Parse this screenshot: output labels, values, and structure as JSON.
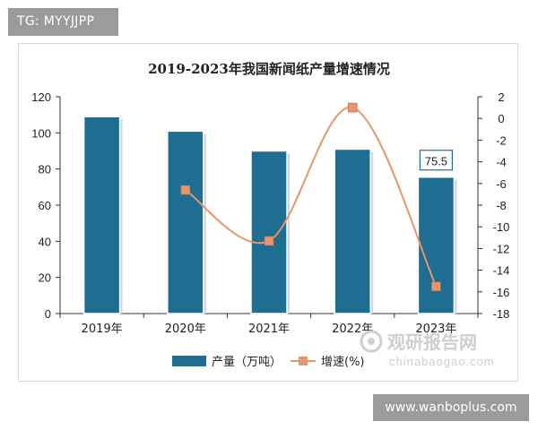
{
  "tags": {
    "top": "TG: MYYJJPP",
    "bottom": "www.wanboplus.com"
  },
  "watermark": {
    "brand": "观研报告网",
    "url": "chinabaogao.com"
  },
  "colors": {
    "bar": "#1e6e91",
    "bar_edge": "#0f4a66",
    "line": "#e8956c",
    "marker": "#e8956c",
    "axis": "#333333",
    "text": "#222222"
  },
  "chart_data": {
    "type": "bar",
    "title": "2019-2023年我国新闻纸产量增速情况",
    "categories": [
      "2019年",
      "2020年",
      "2021年",
      "2022年",
      "2023年"
    ],
    "series": [
      {
        "name": "产量（万吨）",
        "type": "bar",
        "axis": "left",
        "values": [
          109,
          101,
          90,
          91,
          75.5
        ]
      },
      {
        "name": "增速(%)",
        "type": "line",
        "axis": "right",
        "values": [
          null,
          -6.6,
          -11.3,
          1.0,
          -15.5
        ]
      }
    ],
    "annotations": [
      {
        "category": "2023年",
        "series": "产量（万吨）",
        "label": "75.5"
      }
    ],
    "y_left": {
      "min": 0,
      "max": 120,
      "ticks": [
        "0",
        "20",
        "40",
        "60",
        "80",
        "100",
        "120"
      ]
    },
    "y_right": {
      "min": -18,
      "max": 2,
      "ticks": [
        "2",
        "0",
        "-2",
        "-4",
        "-6",
        "-8",
        "-10",
        "-12",
        "-14",
        "-16",
        "-18"
      ]
    },
    "legend_position": "bottom",
    "grid": false
  }
}
